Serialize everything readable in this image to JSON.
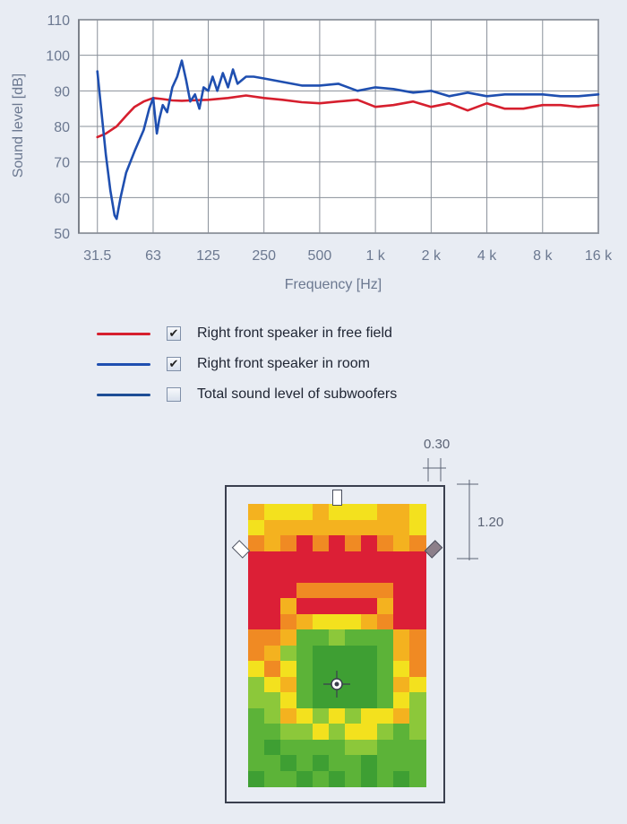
{
  "chart_data": {
    "type": "line",
    "xlabel": "Frequency [Hz]",
    "ylabel": "Sound level [dB]",
    "x_scale": "log",
    "xlim": [
      25,
      16000
    ],
    "ylim": [
      50,
      110
    ],
    "grid": true,
    "x_ticks": [
      {
        "value": 31.5,
        "label": "31.5"
      },
      {
        "value": 63,
        "label": "63"
      },
      {
        "value": 125,
        "label": "125"
      },
      {
        "value": 250,
        "label": "250"
      },
      {
        "value": 500,
        "label": "500"
      },
      {
        "value": 1000,
        "label": "1 k"
      },
      {
        "value": 2000,
        "label": "2 k"
      },
      {
        "value": 4000,
        "label": "4 k"
      },
      {
        "value": 8000,
        "label": "8 k"
      },
      {
        "value": 16000,
        "label": "16 k"
      }
    ],
    "y_ticks": [
      50,
      60,
      70,
      80,
      90,
      100,
      110
    ],
    "series": [
      {
        "name": "Right front speaker in free field",
        "color": "#d61f2e",
        "checked": true,
        "x": [
          31.5,
          35,
          40,
          45,
          50,
          56,
          63,
          71,
          80,
          90,
          100,
          125,
          160,
          200,
          250,
          315,
          400,
          500,
          630,
          800,
          1000,
          1250,
          1600,
          2000,
          2500,
          3150,
          4000,
          5000,
          6300,
          8000,
          10000,
          12500,
          16000
        ],
        "y": [
          77,
          78,
          80,
          83,
          85.5,
          87,
          88,
          87.7,
          87.3,
          87.2,
          87.3,
          87.5,
          88,
          88.7,
          88,
          87.5,
          86.8,
          86.5,
          87,
          87.5,
          85.5,
          86,
          87,
          85.5,
          86.5,
          84.5,
          86.5,
          85,
          85,
          86,
          86,
          85.5,
          86
        ]
      },
      {
        "name": "Right front speaker in room",
        "color": "#1f4fb0",
        "checked": true,
        "x": [
          31.5,
          33,
          35,
          37,
          39,
          40,
          42,
          45,
          50,
          56,
          60,
          63,
          66,
          68,
          71,
          75,
          80,
          85,
          90,
          95,
          100,
          106,
          112,
          118,
          125,
          132,
          140,
          150,
          160,
          170,
          180,
          200,
          220,
          250,
          315,
          400,
          500,
          630,
          800,
          1000,
          1250,
          1600,
          2000,
          2500,
          3150,
          4000,
          5000,
          6300,
          8000,
          10000,
          12500,
          16000
        ],
        "y": [
          95.5,
          85,
          72,
          62,
          55,
          54,
          60,
          67,
          73,
          79,
          85,
          88,
          78,
          82,
          86,
          84,
          91,
          94,
          98.5,
          93,
          87,
          89,
          85,
          91,
          90,
          94,
          90,
          95,
          91,
          96,
          92,
          94,
          94,
          93.5,
          92.5,
          91.5,
          91.5,
          92,
          90,
          91,
          90.5,
          89.5,
          90,
          88.5,
          89.5,
          88.5,
          89,
          89,
          89,
          88.5,
          88.5,
          89
        ]
      },
      {
        "name": "Total sound level of subwoofers",
        "color": "#1d4d95",
        "checked": false
      }
    ]
  },
  "room": {
    "width_label": "0.30",
    "depth_label": "1.20",
    "heatmap_colors": {
      "g": "#5cb338",
      "G": "#3e9f33",
      "l": "#8cc83a",
      "y": "#f3e11e",
      "o": "#f4b21f",
      "O": "#f08a23",
      "r": "#e84a2f",
      "R": "#dc1f36"
    },
    "heatmap_rows": [
      "oyyyoyyyooy",
      "yoooooooooy",
      "OoOROROROoO",
      "RRRRRRRRRRR",
      "RRRRRRRRRRR",
      "RRROOOOOORR",
      "RRoRRRRRoRR",
      "RROoyyyoORR",
      "OOogglgggoO",
      "OolgGGGGgoO",
      "yOygGGGGgyO",
      "lyogGGGGgoy",
      "llygGGGGgyl",
      "gloylylyyol",
      "ggllylyylgl",
      "gGggggllggg",
      "ggGgGggGggg",
      "GggGgGgGgGg"
    ]
  }
}
